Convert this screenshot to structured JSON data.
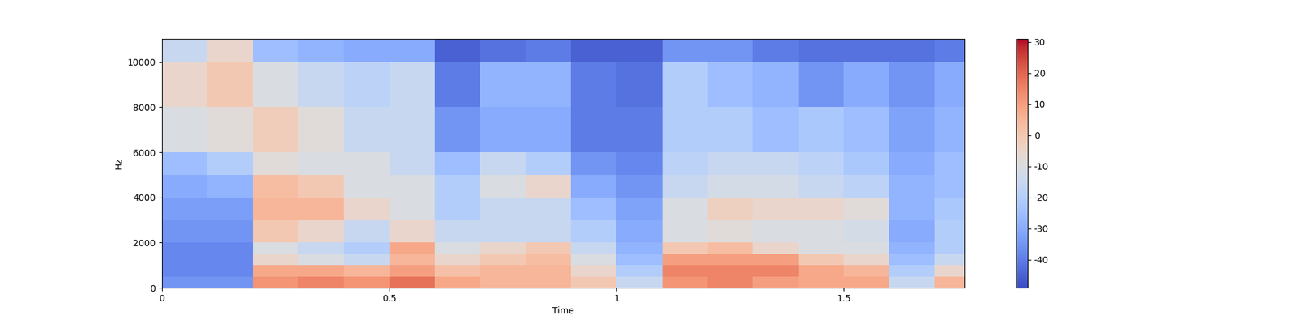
{
  "chart_data": {
    "type": "heatmap",
    "x_label": "Time",
    "y_label": "Hz",
    "xlim": [
      0,
      1.765
    ],
    "ylim": [
      0,
      11025
    ],
    "xticks": [
      0,
      0.5,
      1,
      1.5
    ],
    "yticks": [
      0,
      2000,
      4000,
      6000,
      8000,
      10000
    ],
    "color": "coolwarm",
    "time_edges": [
      0,
      0.1,
      0.2,
      0.3,
      0.4,
      0.5,
      0.6,
      0.7,
      0.8,
      0.9,
      1.0,
      1.1,
      1.2,
      1.3,
      1.4,
      1.5,
      1.6,
      1.7,
      1.765
    ],
    "freq_edges": [
      0,
      500,
      1000,
      1500,
      2000,
      3000,
      4000,
      5000,
      6000,
      8000,
      10000,
      11025
    ],
    "cells": [
      [
        -35,
        -35,
        12,
        15,
        12,
        18,
        8,
        5,
        5,
        0,
        -15,
        12,
        15,
        10,
        8,
        8,
        -15,
        5
      ],
      [
        -38,
        -38,
        8,
        8,
        5,
        10,
        2,
        5,
        5,
        -5,
        -20,
        15,
        15,
        15,
        8,
        5,
        -20,
        -5
      ],
      [
        -38,
        -38,
        -5,
        -10,
        -15,
        5,
        -5,
        0,
        3,
        -10,
        -25,
        10,
        10,
        10,
        0,
        -5,
        -25,
        -15
      ],
      [
        -38,
        -38,
        -10,
        -15,
        -20,
        8,
        -10,
        -5,
        0,
        -15,
        -28,
        0,
        3,
        -5,
        -10,
        -10,
        -28,
        -20
      ],
      [
        -35,
        -35,
        0,
        -5,
        -15,
        -5,
        -15,
        -15,
        -15,
        -20,
        -30,
        -10,
        -8,
        -10,
        -10,
        -12,
        -30,
        -20
      ],
      [
        -33,
        -33,
        5,
        5,
        -5,
        -10,
        -20,
        -15,
        -15,
        -25,
        -32,
        -10,
        -3,
        -5,
        -5,
        -8,
        -28,
        -22
      ],
      [
        -30,
        -28,
        3,
        0,
        -10,
        -10,
        -20,
        -10,
        -5,
        -30,
        -35,
        -15,
        -12,
        -12,
        -15,
        -18,
        -28,
        -25
      ],
      [
        -25,
        -20,
        -8,
        -10,
        -10,
        -15,
        -25,
        -15,
        -20,
        -35,
        -38,
        -18,
        -15,
        -15,
        -18,
        -22,
        -30,
        -25
      ],
      [
        -10,
        -8,
        -2,
        -8,
        -15,
        -15,
        -35,
        -30,
        -30,
        -40,
        -40,
        -20,
        -20,
        -25,
        -22,
        -25,
        -32,
        -28
      ],
      [
        -5,
        0,
        -10,
        -15,
        -18,
        -15,
        -40,
        -28,
        -28,
        -40,
        -42,
        -20,
        -25,
        -28,
        -35,
        -30,
        -35,
        -30
      ],
      [
        -15,
        -5,
        -25,
        -28,
        -30,
        -30,
        -45,
        -42,
        -40,
        -45,
        -45,
        -35,
        -35,
        -40,
        -42,
        -42,
        -42,
        -40
      ]
    ],
    "clim": [
      -49,
      31
    ],
    "cticks": [
      -40,
      -30,
      -20,
      -10,
      0,
      10,
      20,
      30
    ]
  }
}
